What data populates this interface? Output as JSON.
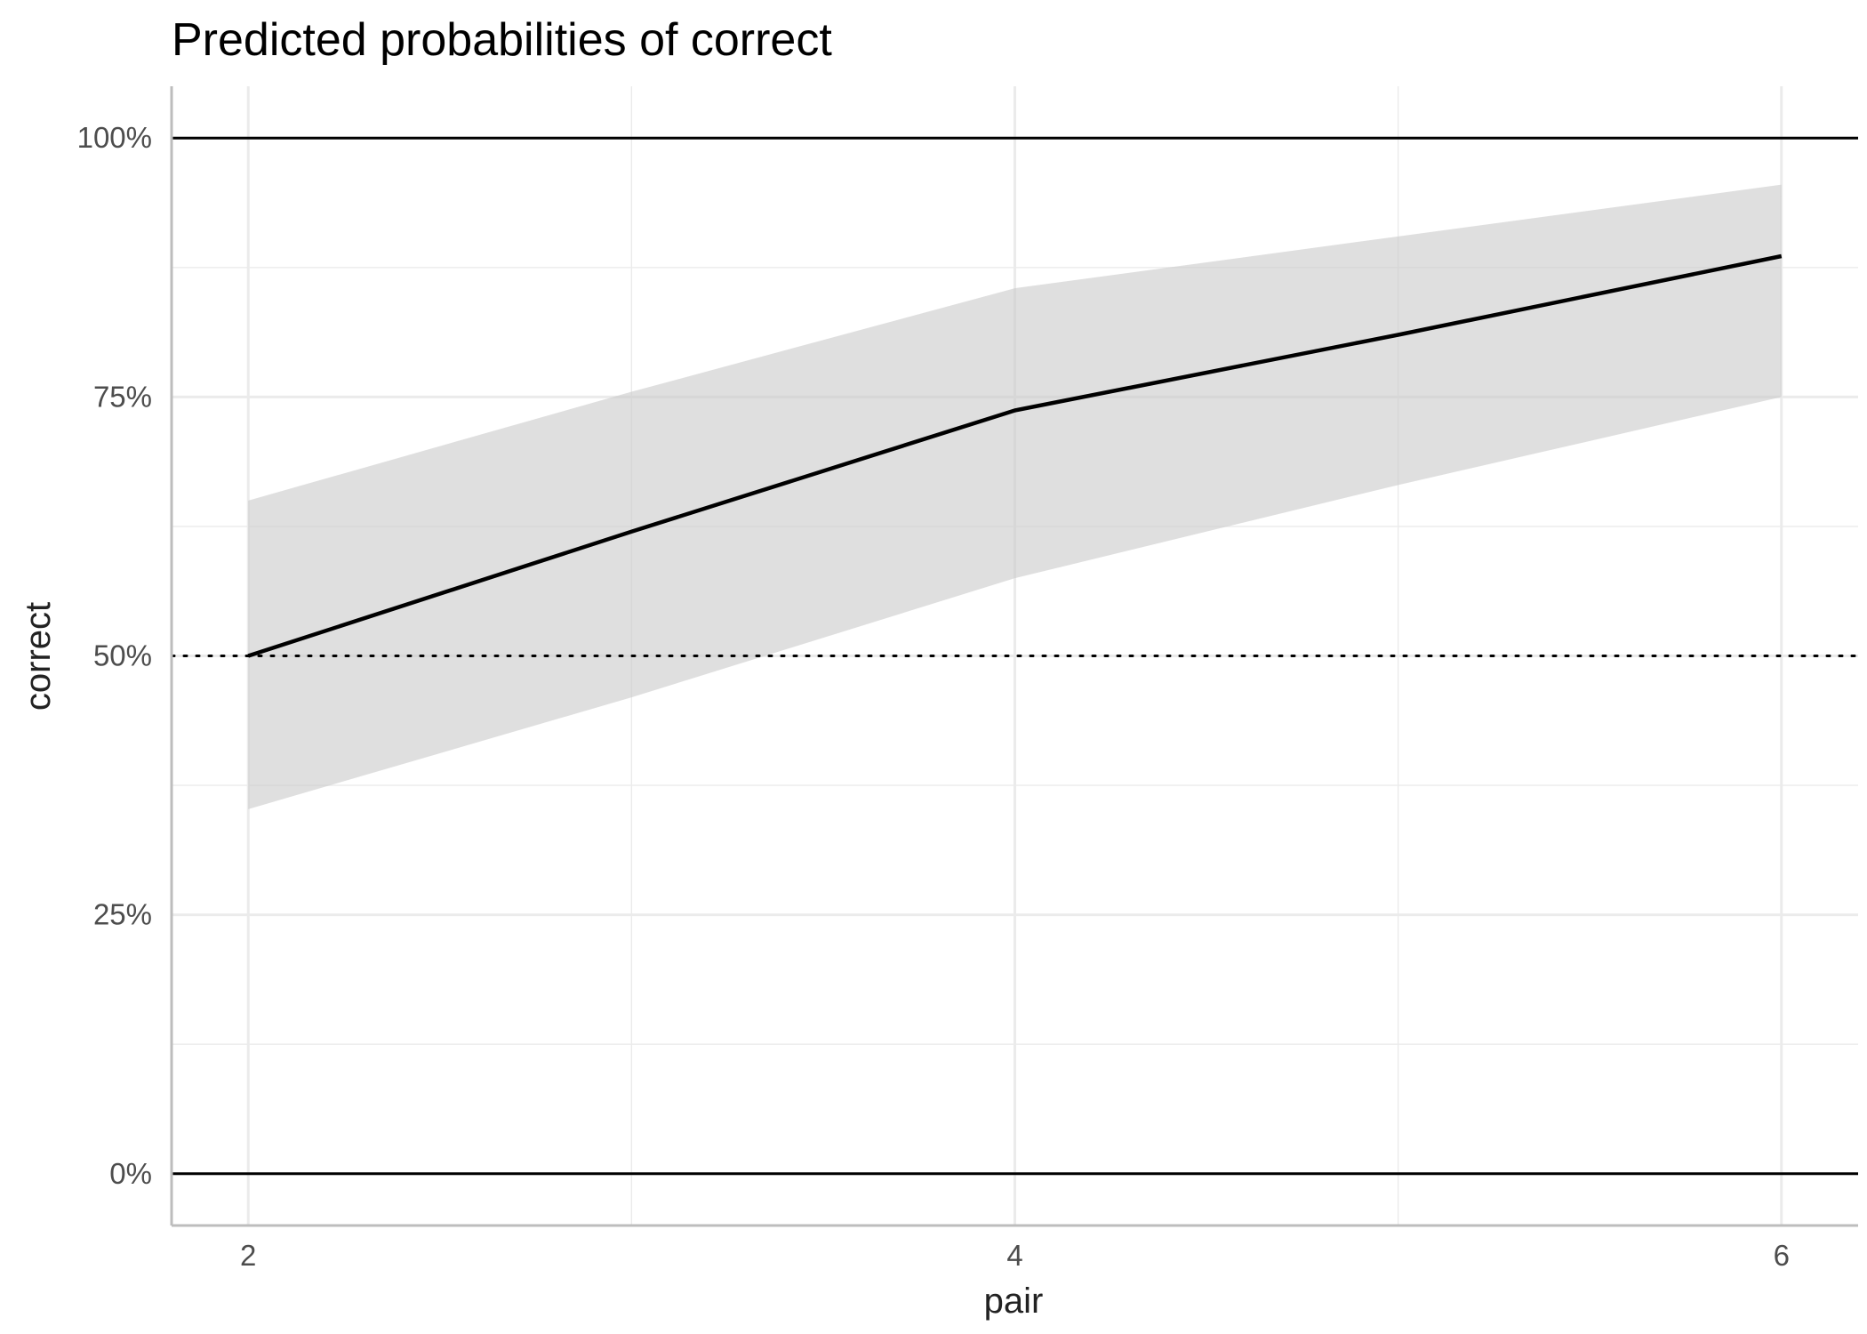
{
  "chart_data": {
    "type": "line",
    "title": "Predicted probabilities of correct",
    "xlabel": "pair",
    "ylabel": "correct",
    "x": [
      2,
      3,
      4,
      5,
      6
    ],
    "series": [
      {
        "values": [
          0.5,
          0.62,
          0.737,
          0.81,
          0.886
        ],
        "lower": [
          0.352,
          0.46,
          0.575,
          0.665,
          0.75
        ],
        "upper": [
          0.65,
          0.755,
          0.855,
          0.905,
          0.955
        ]
      }
    ],
    "xlim": [
      1.8,
      6.2
    ],
    "ylim": [
      -0.05,
      1.05
    ],
    "x_ticks": [
      2,
      4,
      6
    ],
    "x_tick_labels": [
      "2",
      "4",
      "6"
    ],
    "x_minor_ticks": [
      3,
      5
    ],
    "y_ticks": [
      0,
      0.25,
      0.5,
      0.75,
      1
    ],
    "y_tick_labels": [
      "0%",
      "25%",
      "50%",
      "75%",
      "100%"
    ],
    "y_minor_ticks": [
      0.125,
      0.375,
      0.625,
      0.875
    ],
    "reference_lines": [
      {
        "y": 0,
        "style": "solid"
      },
      {
        "y": 1,
        "style": "solid"
      },
      {
        "y": 0.5,
        "style": "dotted"
      }
    ],
    "grid": true,
    "legend": "none",
    "colors": {
      "line": "#000000",
      "ribbon": "#c8c8c8",
      "grid": "#ebebeb",
      "axis": "#bdbdbd"
    }
  }
}
